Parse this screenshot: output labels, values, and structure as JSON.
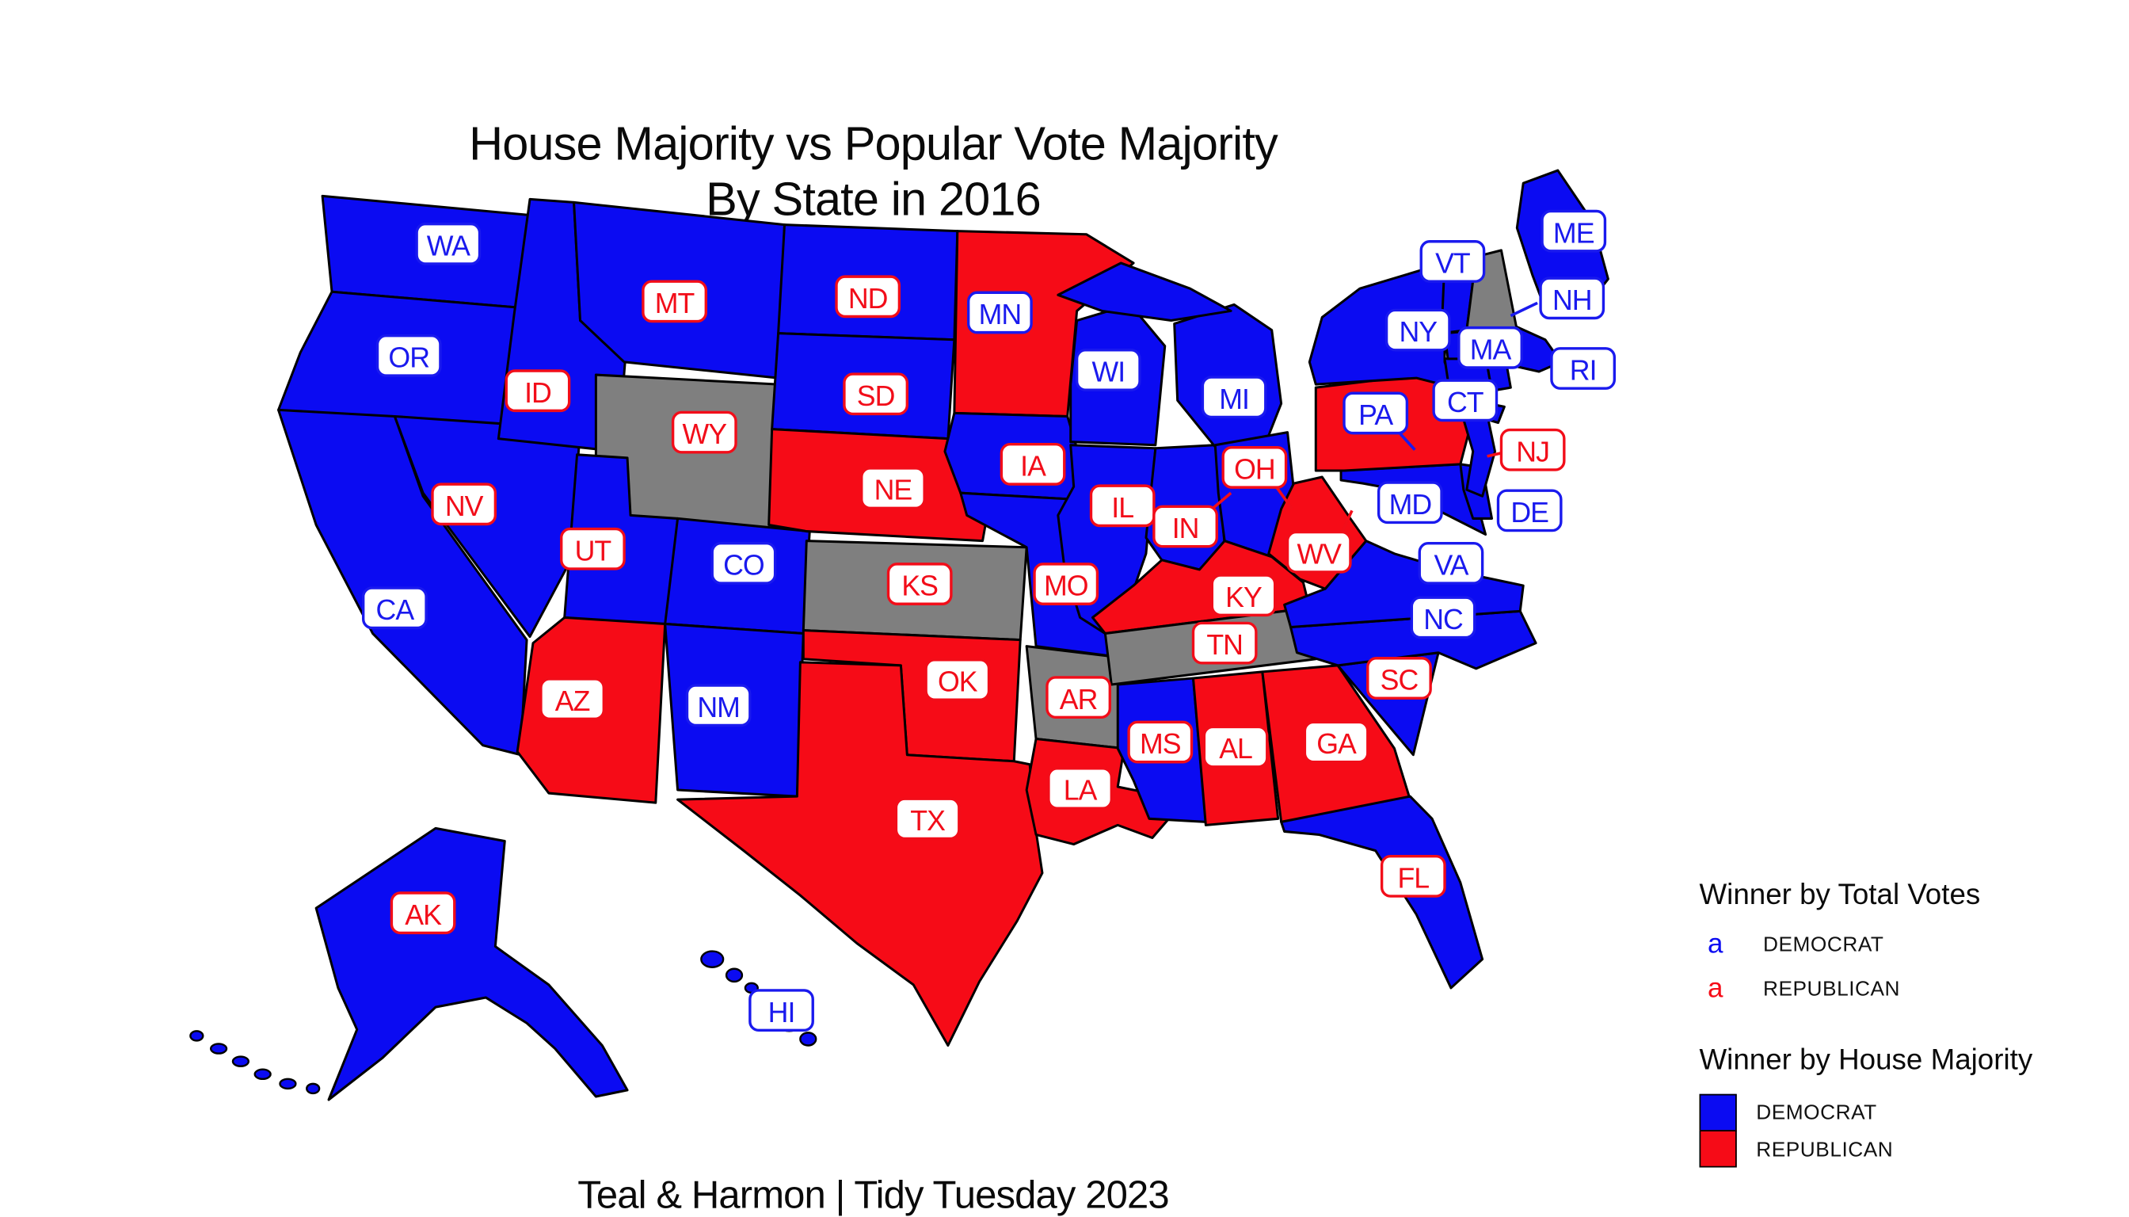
{
  "title": {
    "line1": "House Majority vs Popular Vote Majority",
    "line2": "By State in 2016"
  },
  "caption": "Teal & Harmon | Tidy Tuesday 2023",
  "legend": {
    "total_votes": {
      "title": "Winner by Total Votes",
      "key_glyph": "a",
      "items": [
        {
          "label": "DEMOCRAT",
          "party": "democrat"
        },
        {
          "label": "REPUBLICAN",
          "party": "republican"
        }
      ]
    },
    "house_majority": {
      "title": "Winner by House Majority",
      "items": [
        {
          "label": "DEMOCRAT",
          "party": "democrat"
        },
        {
          "label": "REPUBLICAN",
          "party": "republican"
        }
      ]
    }
  },
  "colors": {
    "democrat": "#0B0BF2",
    "republican": "#F60B17",
    "no_majority": "#7F7F7F",
    "label_democrat": "#1A1AEE",
    "label_republican": "#F20D19",
    "state_border": "#000000",
    "text": "#0a0a0a"
  },
  "chart_data": {
    "type": "choropleth",
    "region": "United States (50 states)",
    "year": 2016,
    "fill_encodes": "Winner by House Majority",
    "label_color_encodes": "Winner by Total Votes",
    "states": [
      {
        "abbr": "WA",
        "house_majority": "DEMOCRAT",
        "total_votes_winner": "DEMOCRAT"
      },
      {
        "abbr": "OR",
        "house_majority": "DEMOCRAT",
        "total_votes_winner": "DEMOCRAT"
      },
      {
        "abbr": "CA",
        "house_majority": "DEMOCRAT",
        "total_votes_winner": "DEMOCRAT"
      },
      {
        "abbr": "NV",
        "house_majority": "DEMOCRAT",
        "total_votes_winner": "REPUBLICAN"
      },
      {
        "abbr": "ID",
        "house_majority": "DEMOCRAT",
        "total_votes_winner": "REPUBLICAN"
      },
      {
        "abbr": "MT",
        "house_majority": "DEMOCRAT",
        "total_votes_winner": "REPUBLICAN"
      },
      {
        "abbr": "WY",
        "house_majority": "NONE",
        "total_votes_winner": "REPUBLICAN"
      },
      {
        "abbr": "UT",
        "house_majority": "DEMOCRAT",
        "total_votes_winner": "REPUBLICAN"
      },
      {
        "abbr": "CO",
        "house_majority": "DEMOCRAT",
        "total_votes_winner": "DEMOCRAT"
      },
      {
        "abbr": "AZ",
        "house_majority": "REPUBLICAN",
        "total_votes_winner": "REPUBLICAN"
      },
      {
        "abbr": "NM",
        "house_majority": "DEMOCRAT",
        "total_votes_winner": "DEMOCRAT"
      },
      {
        "abbr": "ND",
        "house_majority": "DEMOCRAT",
        "total_votes_winner": "REPUBLICAN"
      },
      {
        "abbr": "SD",
        "house_majority": "DEMOCRAT",
        "total_votes_winner": "REPUBLICAN"
      },
      {
        "abbr": "NE",
        "house_majority": "REPUBLICAN",
        "total_votes_winner": "REPUBLICAN"
      },
      {
        "abbr": "KS",
        "house_majority": "NONE",
        "total_votes_winner": "REPUBLICAN"
      },
      {
        "abbr": "OK",
        "house_majority": "REPUBLICAN",
        "total_votes_winner": "REPUBLICAN"
      },
      {
        "abbr": "TX",
        "house_majority": "REPUBLICAN",
        "total_votes_winner": "REPUBLICAN"
      },
      {
        "abbr": "MN",
        "house_majority": "REPUBLICAN",
        "total_votes_winner": "DEMOCRAT"
      },
      {
        "abbr": "IA",
        "house_majority": "DEMOCRAT",
        "total_votes_winner": "REPUBLICAN"
      },
      {
        "abbr": "MO",
        "house_majority": "DEMOCRAT",
        "total_votes_winner": "REPUBLICAN"
      },
      {
        "abbr": "AR",
        "house_majority": "NONE",
        "total_votes_winner": "REPUBLICAN"
      },
      {
        "abbr": "LA",
        "house_majority": "REPUBLICAN",
        "total_votes_winner": "REPUBLICAN"
      },
      {
        "abbr": "WI",
        "house_majority": "DEMOCRAT",
        "total_votes_winner": "DEMOCRAT"
      },
      {
        "abbr": "IL",
        "house_majority": "DEMOCRAT",
        "total_votes_winner": "REPUBLICAN"
      },
      {
        "abbr": "IN",
        "house_majority": "DEMOCRAT",
        "total_votes_winner": "REPUBLICAN"
      },
      {
        "abbr": "MI",
        "house_majority": "DEMOCRAT",
        "total_votes_winner": "DEMOCRAT"
      },
      {
        "abbr": "OH",
        "house_majority": "DEMOCRAT",
        "total_votes_winner": "REPUBLICAN"
      },
      {
        "abbr": "KY",
        "house_majority": "REPUBLICAN",
        "total_votes_winner": "REPUBLICAN"
      },
      {
        "abbr": "TN",
        "house_majority": "NONE",
        "total_votes_winner": "REPUBLICAN"
      },
      {
        "abbr": "MS",
        "house_majority": "DEMOCRAT",
        "total_votes_winner": "REPUBLICAN"
      },
      {
        "abbr": "AL",
        "house_majority": "REPUBLICAN",
        "total_votes_winner": "REPUBLICAN"
      },
      {
        "abbr": "GA",
        "house_majority": "REPUBLICAN",
        "total_votes_winner": "REPUBLICAN"
      },
      {
        "abbr": "FL",
        "house_majority": "DEMOCRAT",
        "total_votes_winner": "REPUBLICAN"
      },
      {
        "abbr": "SC",
        "house_majority": "DEMOCRAT",
        "total_votes_winner": "REPUBLICAN"
      },
      {
        "abbr": "NC",
        "house_majority": "DEMOCRAT",
        "total_votes_winner": "DEMOCRAT"
      },
      {
        "abbr": "VA",
        "house_majority": "DEMOCRAT",
        "total_votes_winner": "DEMOCRAT"
      },
      {
        "abbr": "WV",
        "house_majority": "REPUBLICAN",
        "total_votes_winner": "REPUBLICAN"
      },
      {
        "abbr": "MD",
        "house_majority": "DEMOCRAT",
        "total_votes_winner": "DEMOCRAT"
      },
      {
        "abbr": "DE",
        "house_majority": "DEMOCRAT",
        "total_votes_winner": "DEMOCRAT"
      },
      {
        "abbr": "PA",
        "house_majority": "REPUBLICAN",
        "total_votes_winner": "DEMOCRAT"
      },
      {
        "abbr": "NJ",
        "house_majority": "DEMOCRAT",
        "total_votes_winner": "REPUBLICAN"
      },
      {
        "abbr": "NY",
        "house_majority": "DEMOCRAT",
        "total_votes_winner": "DEMOCRAT"
      },
      {
        "abbr": "CT",
        "house_majority": "DEMOCRAT",
        "total_votes_winner": "DEMOCRAT"
      },
      {
        "abbr": "RI",
        "house_majority": "DEMOCRAT",
        "total_votes_winner": "DEMOCRAT"
      },
      {
        "abbr": "MA",
        "house_majority": "DEMOCRAT",
        "total_votes_winner": "DEMOCRAT"
      },
      {
        "abbr": "VT",
        "house_majority": "DEMOCRAT",
        "total_votes_winner": "DEMOCRAT"
      },
      {
        "abbr": "NH",
        "house_majority": "NONE",
        "total_votes_winner": "DEMOCRAT"
      },
      {
        "abbr": "ME",
        "house_majority": "DEMOCRAT",
        "total_votes_winner": "DEMOCRAT"
      },
      {
        "abbr": "AK",
        "house_majority": "DEMOCRAT",
        "total_votes_winner": "REPUBLICAN"
      },
      {
        "abbr": "HI",
        "house_majority": "DEMOCRAT",
        "total_votes_winner": "DEMOCRAT"
      }
    ]
  }
}
